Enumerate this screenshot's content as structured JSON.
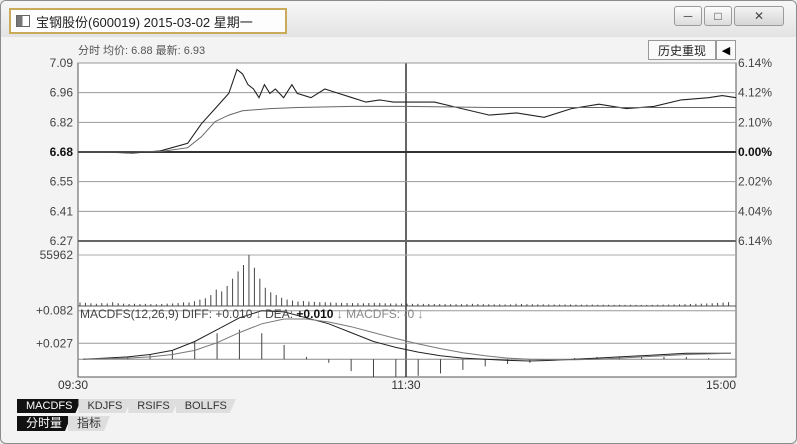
{
  "window": {
    "title": "宝钢股份(600019) 2015-03-02 星期一",
    "controls": {
      "minimize": "─",
      "maximize": "□",
      "close": "✕"
    }
  },
  "info_bar": {
    "text": "分时 均价: 6.88 最新: 6.93"
  },
  "toolbar": {
    "history_replay": "历史重现",
    "back_icon": "back-to-start-icon"
  },
  "chart_data": {
    "type": "line",
    "price_axis": {
      "left_labels": [
        "7.09",
        "6.96",
        "6.82",
        "6.68",
        "6.55",
        "6.41",
        "6.27"
      ],
      "right_labels": [
        "6.14%",
        "4.12%",
        "2.10%",
        "0.00%",
        "2.02%",
        "4.04%",
        "6.14%"
      ],
      "ylim": [
        6.27,
        7.09
      ],
      "prev_close": 6.68
    },
    "time_axis": {
      "labels": [
        "09:30",
        "11:30",
        "15:00"
      ],
      "minutes_total": 240
    },
    "series": [
      {
        "name": "price",
        "x": [
          0,
          10,
          20,
          30,
          40,
          45,
          50,
          55,
          58,
          60,
          62,
          64,
          66,
          68,
          70,
          72,
          75,
          78,
          80,
          85,
          90,
          95,
          100,
          105,
          110,
          115,
          120,
          130,
          140,
          150,
          160,
          170,
          180,
          190,
          200,
          210,
          220,
          230,
          235,
          240
        ],
        "values": [
          6.68,
          6.68,
          6.675,
          6.685,
          6.72,
          6.81,
          6.88,
          6.95,
          7.06,
          7.04,
          6.99,
          6.97,
          6.93,
          6.99,
          6.95,
          6.97,
          6.93,
          6.99,
          6.95,
          6.93,
          6.97,
          6.95,
          6.93,
          6.91,
          6.92,
          6.91,
          6.91,
          6.91,
          6.88,
          6.85,
          6.86,
          6.84,
          6.88,
          6.9,
          6.88,
          6.89,
          6.92,
          6.93,
          6.94,
          6.93
        ]
      },
      {
        "name": "avg",
        "x": [
          0,
          20,
          30,
          40,
          45,
          50,
          55,
          60,
          70,
          80,
          100,
          120,
          150,
          180,
          210,
          240
        ],
        "values": [
          6.68,
          6.68,
          6.682,
          6.7,
          6.75,
          6.82,
          6.85,
          6.87,
          6.88,
          6.885,
          6.89,
          6.89,
          6.885,
          6.885,
          6.885,
          6.885
        ]
      }
    ],
    "volume": {
      "label": "55962",
      "max": 55962,
      "values": [
        4000,
        3500,
        3000,
        2500,
        3200,
        2800,
        4200,
        3100,
        2600,
        2200,
        2500,
        2100,
        2400,
        2000,
        1900,
        2200,
        2600,
        2800,
        3200,
        4000,
        3800,
        5200,
        7000,
        8500,
        12000,
        18000,
        16000,
        22000,
        30000,
        38000,
        45000,
        55962,
        42000,
        30000,
        20000,
        15000,
        12000,
        9000,
        7000,
        6000,
        5000,
        5500,
        4800,
        4500,
        4200,
        4100,
        3900,
        3600,
        3400,
        3300,
        3200,
        3100,
        3000,
        3300,
        3500,
        3200,
        3000,
        2800,
        2700,
        2600,
        2500,
        2400,
        2400,
        2300,
        2300,
        2200,
        2100,
        2100,
        2000,
        2000,
        1900,
        2100,
        2400,
        2200,
        2000,
        1900,
        1800,
        1800,
        1700,
        1700,
        2500,
        2200,
        2000,
        1900,
        1800,
        1800,
        1700,
        1700,
        1600,
        1600,
        1600,
        1500,
        1500,
        1500,
        1500,
        1400,
        1400,
        1400,
        1300,
        1300,
        1300,
        1300,
        1200,
        1200,
        1200,
        1300,
        1400,
        1500,
        1600,
        1700,
        1800,
        2000,
        2200,
        2400,
        2600,
        2800,
        3000,
        3400,
        3800,
        4200
      ]
    },
    "macd": {
      "header": "MACDFS(12,26,9) DIFF: +0.010",
      "diff_arrow": "↓",
      "dea_label": "DEA:",
      "dea_value": "+0.010",
      "dea_arrow": "↓",
      "macdfs_label": "MACDFS: -0",
      "macdfs_arrow": "↓",
      "y_labels": [
        "+0.082",
        "+0.027"
      ],
      "ylim": [
        -0.03,
        0.09
      ],
      "diff": [
        0,
        0.002,
        0.004,
        0.008,
        0.015,
        0.03,
        0.05,
        0.07,
        0.082,
        0.08,
        0.07,
        0.06,
        0.045,
        0.03,
        0.02,
        0.012,
        0.006,
        0.002,
        0,
        -0.002,
        -0.003,
        -0.002,
        0,
        0.002,
        0.004,
        0.006,
        0.008,
        0.01,
        0.01,
        0.01
      ],
      "dea": [
        0,
        0.001,
        0.002,
        0.004,
        0.008,
        0.015,
        0.028,
        0.045,
        0.06,
        0.068,
        0.068,
        0.063,
        0.055,
        0.045,
        0.035,
        0.026,
        0.018,
        0.011,
        0.006,
        0.002,
        0,
        -0.001,
        -0.001,
        0,
        0.002,
        0.004,
        0.006,
        0.008,
        0.009,
        0.01
      ]
    }
  },
  "tabs_indicator": [
    "MACDFS",
    "KDJFS",
    "RSIFS",
    "BOLLFS"
  ],
  "tabs_bottom": [
    "分时量",
    "指标"
  ]
}
